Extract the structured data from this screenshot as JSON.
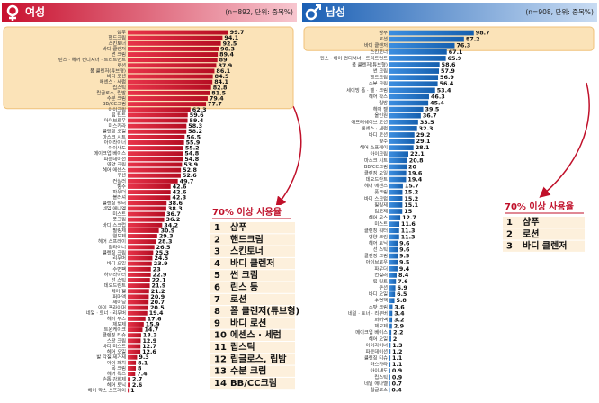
{
  "chart_data": [
    {
      "type": "bar",
      "title": "여성",
      "note": "(n=892, 단위: 중복%)",
      "color": "#d8192f",
      "xlim": [
        0,
        100
      ],
      "categories": [
        "샴푸",
        "핸드크림",
        "스킨토너",
        "바디 클렌저",
        "썬 크림",
        "린스 · 헤어 컨디셔너 · 트리트먼트",
        "로션",
        "폼 클렌저(튜브형)",
        "바디 로션",
        "에센스 · 세럼",
        "립스틱",
        "립글로스, 립밤",
        "수분 크림",
        "BB/CC크림",
        "아이크림",
        "립 틴트",
        "아이브로우",
        "마스카라",
        "클렌징 오일",
        "마스크 시트",
        "아이라이너",
        "아이섀도",
        "메이크업 베이스",
        "파운데이션",
        "영양 크림",
        "헤어 에센스",
        "쿠션",
        "컨실러",
        "향수",
        "파우더",
        "블러셔",
        "클렌징 워터",
        "네일 에나멜",
        "미스트",
        "풋크림",
        "바디 스크럽",
        "필링제",
        "염모제",
        "헤어 스프레이",
        "립라이너",
        "클렌징 크림",
        "리무버",
        "바디 오일",
        "수면팩",
        "하이라이터",
        "선 스틱",
        "데오드란트",
        "헤어 젤",
        "퍼머액",
        "셰이딩",
        "아이 프라이머",
        "네일 · 토너 · 리무버",
        "헤어 무스",
        "제모제",
        "트윈케이크",
        "클렌징 티슈",
        "스팟 크림",
        "바디 미스트",
        "헤어 오일",
        "발 각질 제거제",
        "아이 패치",
        "목 크림",
        "헤어 왁스",
        "손톱 강화제",
        "헤어 토닉",
        "헤어 왁스 스프레이"
      ],
      "values": [
        99.7,
        94.1,
        92.5,
        90.3,
        89.4,
        89.0,
        87.9,
        86.1,
        84.5,
        84.1,
        82.8,
        81.5,
        79.4,
        77.7,
        62.3,
        59.6,
        59.4,
        58.3,
        58.2,
        56.5,
        55.9,
        55.2,
        54.8,
        54.8,
        53.9,
        52.8,
        52.6,
        49.7,
        42.6,
        42.6,
        42.3,
        38.6,
        38.3,
        36.7,
        36.2,
        34.2,
        30.9,
        29.3,
        28.3,
        26.5,
        25.3,
        24.5,
        23.9,
        23.0,
        22.9,
        22.1,
        21.9,
        21.2,
        20.9,
        20.7,
        20.5,
        19.4,
        17.6,
        15.9,
        14.7,
        13.3,
        12.9,
        12.7,
        12.6,
        9.3,
        8.1,
        8.0,
        7.4,
        2.7,
        2.6,
        1.0
      ],
      "callout": {
        "title": "70% 이상 사용율",
        "items": [
          {
            "rank": 1,
            "label": "샴푸"
          },
          {
            "rank": 2,
            "label": "핸드크림"
          },
          {
            "rank": 3,
            "label": "스킨토너"
          },
          {
            "rank": 4,
            "label": "바디 클렌저"
          },
          {
            "rank": 5,
            "label": "썬 크림"
          },
          {
            "rank": 6,
            "label": "린스 등"
          },
          {
            "rank": 7,
            "label": "로션"
          },
          {
            "rank": 8,
            "label": "폼 클렌저(튜브형)"
          },
          {
            "rank": 9,
            "label": "바디 로션"
          },
          {
            "rank": 10,
            "label": "에센스 · 세럼"
          },
          {
            "rank": 11,
            "label": "립스틱"
          },
          {
            "rank": 12,
            "label": "립글로스, 립밤"
          },
          {
            "rank": 13,
            "label": "수분 크림"
          },
          {
            "rank": 14,
            "label": "BB/CC크림"
          }
        ]
      }
    },
    {
      "type": "bar",
      "title": "남성",
      "note": "(n=908, 단위: 중복%)",
      "color": "#1f72c8",
      "xlim": [
        0,
        100
      ],
      "categories": [
        "샴푸",
        "로션",
        "바디 클렌저",
        "스킨토너",
        "린스 · 헤어 컨디셔너 · 트리트먼트",
        "폼 클렌저(튜브형)",
        "썬 크림",
        "핸드크림",
        "수분 크림",
        "세이빙 폼 · 젤 · 크림",
        "헤어 왁스",
        "립밤",
        "헤어 젤",
        "올인원",
        "애프터쉐이브 로션",
        "에센스 · 세럼",
        "바디 로션",
        "향수",
        "헤어 스프레이",
        "아이크림",
        "마스크 시트",
        "BB/CC크림",
        "클렌징 오일",
        "데오드란트",
        "헤어 에센스",
        "풋크림",
        "바디 스크럽",
        "필링제",
        "염모제",
        "헤어 무스",
        "미스트",
        "클렌징 워터",
        "영양 크림",
        "헤어 토닉",
        "선 스틱",
        "클렌징 크림",
        "아이브로우",
        "파우더",
        "컨실러",
        "립 틴트",
        "쿠션",
        "바디 오일",
        "수면팩",
        "스팟 크림",
        "네일 · 토너 · 리무버",
        "퍼머액",
        "제모제",
        "메이크업 베이스",
        "헤어 오일",
        "아이라이너",
        "파운데이션",
        "클렌징 티슈",
        "마스카라",
        "아이섀도",
        "립스틱",
        "네일 에나멜",
        "립글로스"
      ],
      "values": [
        98.7,
        87.2,
        76.3,
        67.1,
        65.9,
        58.6,
        57.9,
        56.9,
        56.4,
        53.4,
        46.3,
        45.4,
        39.5,
        36.7,
        33.5,
        32.3,
        29.2,
        29.1,
        28.1,
        22.1,
        20.8,
        20.0,
        19.6,
        19.4,
        15.7,
        15.2,
        15.2,
        15.1,
        15.0,
        12.7,
        11.6,
        11.3,
        11.3,
        9.6,
        9.6,
        9.5,
        9.5,
        9.4,
        8.4,
        7.6,
        6.9,
        6.5,
        5.8,
        3.6,
        3.4,
        3.2,
        2.9,
        2.2,
        2.0,
        1.3,
        1.2,
        1.1,
        1.1,
        0.9,
        0.9,
        0.7,
        0.4
      ],
      "callout": {
        "title": "70% 이상 사용율",
        "items": [
          {
            "rank": 1,
            "label": "샴푸"
          },
          {
            "rank": 2,
            "label": "로션"
          },
          {
            "rank": 3,
            "label": "바디 클렌저"
          }
        ]
      }
    }
  ]
}
